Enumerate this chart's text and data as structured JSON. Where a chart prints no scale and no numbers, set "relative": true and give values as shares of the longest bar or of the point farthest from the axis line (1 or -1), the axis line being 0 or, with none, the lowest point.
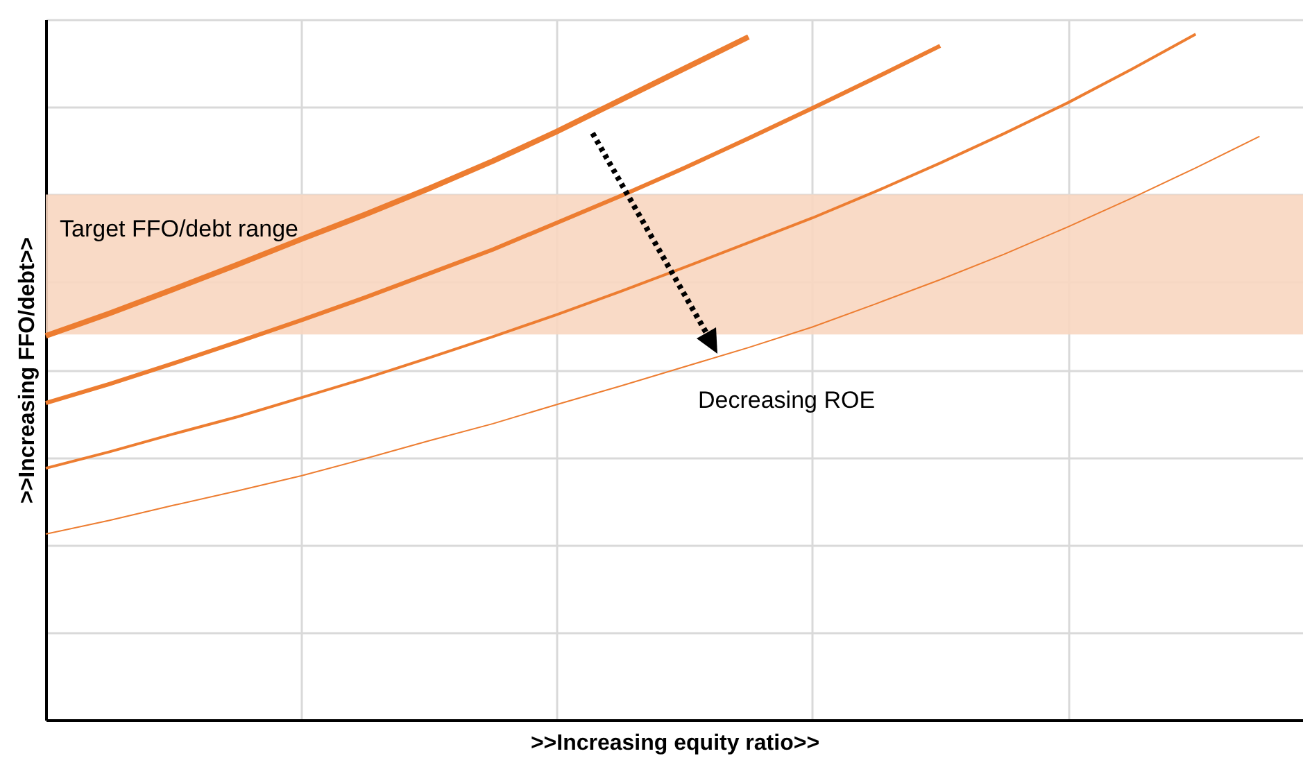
{
  "chart_data": {
    "type": "line",
    "relative": true,
    "xlabel": ">>Increasing equity ratio>>",
    "ylabel": ">>Increasing FFO/debt>>",
    "categories": [
      null,
      null,
      null,
      null,
      null,
      null,
      null,
      null,
      null,
      null,
      null,
      null,
      null,
      null,
      null,
      null,
      null,
      null,
      null,
      null
    ],
    "series": [
      {
        "color": "#ed7d31",
        "values": [
          0.56,
          0.593,
          0.628,
          0.664,
          0.701,
          0.737,
          0.775,
          0.815,
          0.858,
          0.904,
          0.95,
          0.996,
          null,
          null,
          null,
          null,
          null,
          null,
          null,
          null
        ]
      },
      {
        "color": "#ed7d31",
        "values": [
          0.462,
          0.49,
          0.52,
          0.551,
          0.583,
          0.616,
          0.651,
          0.686,
          0.725,
          0.764,
          0.805,
          0.848,
          0.892,
          0.937,
          0.983,
          null,
          null,
          null,
          null,
          null
        ]
      },
      {
        "color": "#ed7d31",
        "values": [
          0.367,
          0.391,
          0.417,
          0.442,
          0.47,
          0.498,
          0.528,
          0.559,
          0.591,
          0.625,
          0.66,
          0.696,
          0.732,
          0.771,
          0.812,
          0.855,
          0.9,
          0.949,
          1,
          null
        ]
      },
      {
        "color": "#ed7d31",
        "values": [
          0.271,
          0.291,
          0.313,
          0.334,
          0.356,
          0.381,
          0.407,
          0.432,
          0.46,
          0.487,
          0.515,
          0.543,
          0.573,
          0.607,
          0.642,
          0.679,
          0.719,
          0.761,
          0.805,
          0.851
        ]
      }
    ],
    "bands": [
      {
        "axis": "y",
        "from": 0.562,
        "to": 0.766,
        "label": "Target FFO/debt range",
        "color": "#f8d6c0"
      }
    ],
    "annotations": [
      "Decreasing ROE"
    ],
    "grid": true,
    "line_style": "solid"
  }
}
